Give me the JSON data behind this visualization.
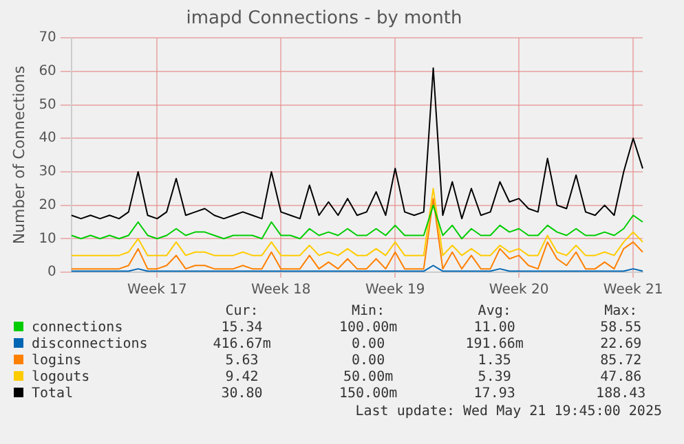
{
  "chart_data": {
    "type": "line",
    "title": "imapd Connections - by month",
    "ylabel": "Number of Connections",
    "categories": [
      null,
      null,
      null,
      null,
      null,
      null,
      null,
      null,
      null,
      "Week 17",
      null,
      null,
      null,
      null,
      null,
      null,
      null,
      null,
      null,
      null,
      null,
      null,
      "Week 18",
      null,
      null,
      null,
      null,
      null,
      null,
      null,
      null,
      null,
      null,
      null,
      "Week 19",
      null,
      null,
      null,
      null,
      null,
      null,
      null,
      null,
      null,
      null,
      null,
      null,
      "Week 20",
      null,
      null,
      null,
      null,
      null,
      null,
      null,
      null,
      null,
      null,
      null,
      "Week 21",
      null
    ],
    "series": [
      {
        "name": "connections",
        "color": "#00cc00",
        "values": [
          11,
          10,
          11,
          10,
          11,
          10,
          11,
          15,
          11,
          10,
          11,
          13,
          11,
          12,
          12,
          11,
          10,
          11,
          11,
          11,
          10,
          15,
          11,
          11,
          10,
          13,
          11,
          12,
          11,
          13,
          11,
          11,
          13,
          11,
          14,
          11,
          11,
          11,
          20,
          11,
          14,
          10,
          13,
          11,
          11,
          14,
          12,
          13,
          11,
          11,
          14,
          12,
          11,
          13,
          11,
          11,
          12,
          11,
          13,
          17,
          15
        ]
      },
      {
        "name": "disconnections",
        "color": "#0066b3",
        "values": [
          0.3,
          0.3,
          0.3,
          0.3,
          0.3,
          0.3,
          0.3,
          1,
          0.3,
          0.3,
          0.3,
          0.3,
          0.3,
          0.3,
          0.3,
          0.3,
          0.3,
          0.3,
          0.3,
          0.3,
          0.3,
          0.3,
          0.3,
          0.3,
          0.3,
          0.3,
          0.3,
          0.3,
          0.3,
          0.3,
          0.3,
          0.3,
          0.3,
          0.3,
          0.3,
          0.3,
          0.3,
          0.3,
          2,
          0.3,
          0.3,
          0.3,
          0.3,
          0.3,
          0.3,
          1,
          0.3,
          0.3,
          0.3,
          0.3,
          0.3,
          0.3,
          0.3,
          0.3,
          0.3,
          0.3,
          0.3,
          0.3,
          0.3,
          1,
          0.3
        ]
      },
      {
        "name": "logins",
        "color": "#ff8000",
        "values": [
          1,
          1,
          1,
          1,
          1,
          1,
          2,
          7,
          1,
          1,
          2,
          5,
          1,
          2,
          2,
          1,
          1,
          1,
          2,
          1,
          1,
          6,
          1,
          1,
          1,
          5,
          1,
          3,
          1,
          4,
          1,
          1,
          4,
          1,
          6,
          1,
          1,
          1,
          22,
          1,
          6,
          1,
          5,
          1,
          1,
          7,
          4,
          5,
          2,
          1,
          9,
          4,
          2,
          6,
          1,
          1,
          3,
          1,
          7,
          9,
          6
        ]
      },
      {
        "name": "logouts",
        "color": "#ffcc00",
        "values": [
          5,
          5,
          5,
          5,
          5,
          5,
          6,
          10,
          5,
          5,
          5,
          9,
          5,
          6,
          6,
          5,
          5,
          5,
          6,
          5,
          5,
          9,
          5,
          5,
          5,
          8,
          5,
          6,
          5,
          7,
          5,
          5,
          7,
          5,
          9,
          5,
          5,
          5,
          25,
          5,
          8,
          5,
          7,
          5,
          5,
          8,
          6,
          7,
          5,
          5,
          11,
          6,
          5,
          8,
          5,
          5,
          6,
          5,
          9,
          12,
          9
        ]
      },
      {
        "name": "Total",
        "color": "#000000",
        "values": [
          17,
          16,
          17,
          16,
          17,
          16,
          18,
          30,
          17,
          16,
          18,
          28,
          17,
          18,
          19,
          17,
          16,
          17,
          18,
          17,
          16,
          30,
          18,
          17,
          16,
          26,
          17,
          21,
          17,
          22,
          17,
          18,
          24,
          17,
          31,
          18,
          17,
          18,
          61,
          17,
          27,
          16,
          25,
          17,
          18,
          27,
          21,
          22,
          19,
          18,
          34,
          20,
          19,
          29,
          18,
          17,
          20,
          17,
          30,
          40,
          31
        ]
      }
    ],
    "ylim": [
      0,
      70
    ],
    "yticks": [
      0,
      10,
      20,
      30,
      40,
      50,
      60,
      70
    ],
    "grid": true,
    "legend": "bottom",
    "marker": "none",
    "line_style": "solid",
    "annotations": [
      "Cur:",
      "Min:",
      "Avg:",
      "Max:",
      "15.34",
      "100.00m",
      "11.00",
      "58.55",
      "416.67m",
      "0.00",
      "191.66m",
      "22.69",
      "5.63",
      "0.00",
      "1.35",
      "85.72",
      "9.42",
      "50.00m",
      "5.39",
      "47.86",
      "30.80",
      "150.00m",
      "17.93",
      "188.43",
      "Last update: Wed May 21 19:45:00 2025"
    ]
  }
}
